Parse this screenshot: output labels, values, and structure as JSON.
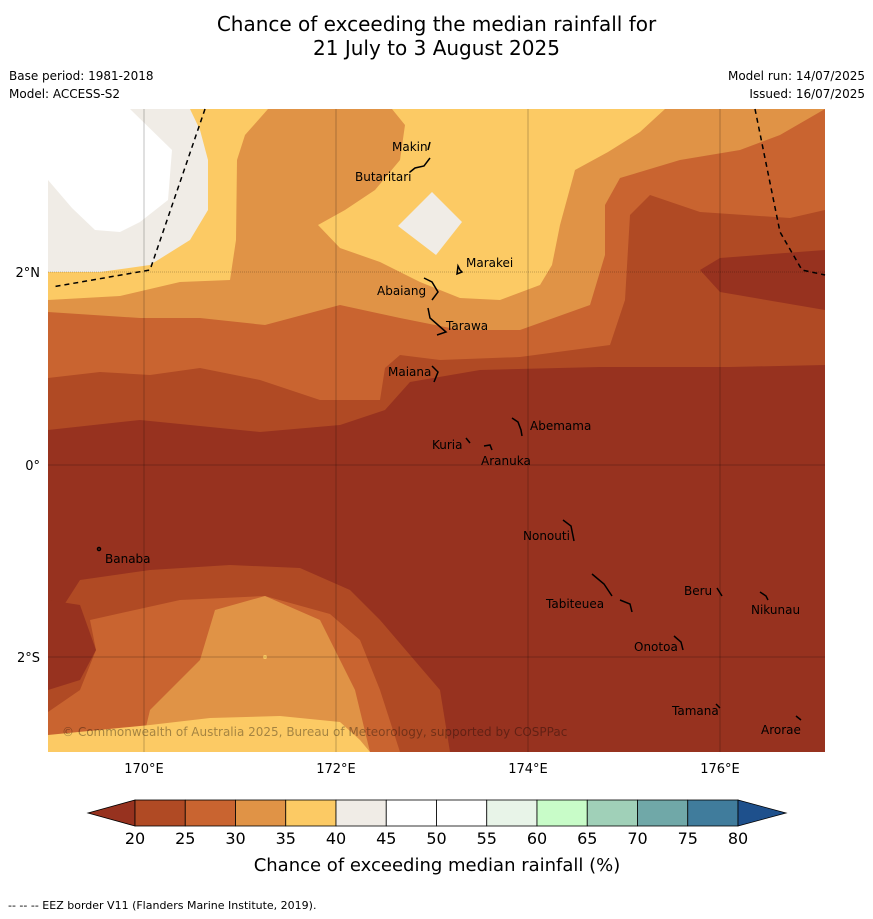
{
  "title_line1": "Chance of exceeding the median rainfall for",
  "title_line2": "21 July to 3 August 2025",
  "meta": {
    "base_period": "Base period: 1981-2018",
    "model": "Model: ACCESS-S2",
    "model_run": "Model run: 14/07/2025",
    "issued": "Issued: 16/07/2025"
  },
  "axes": {
    "lon_ticks": [
      "170°E",
      "172°E",
      "174°E",
      "176°E"
    ],
    "lat_ticks": [
      "2°N",
      "0°",
      "2°S"
    ]
  },
  "places": [
    "Makin",
    "Butaritari",
    "Marakei",
    "Abaiang",
    "Tarawa",
    "Maiana",
    "Abemama",
    "Kuria",
    "Aranuka",
    "Nonouti",
    "Banaba",
    "Tabiteuea",
    "Beru",
    "Nikunau",
    "Onotoa",
    "Tamana",
    "Arorae"
  ],
  "copyright": "© Commonwealth of Australia 2025, Bureau of Meteorology, supported by COSPPac",
  "colorbar": {
    "ticks": [
      "20",
      "25",
      "30",
      "35",
      "40",
      "45",
      "50",
      "55",
      "60",
      "65",
      "70",
      "75",
      "80"
    ],
    "colors": [
      "#b04a24",
      "#c96430",
      "#e09346",
      "#fcca64",
      "#f0ece6",
      "#ffffff",
      "#ffffff",
      "#e8f4e8",
      "#c8fcc8",
      "#a0d0b8",
      "#70a8a8",
      "#407c9c"
    ],
    "under_color": "#97321f",
    "over_color": "#1e508c",
    "label": "Chance of exceeding median rainfall (%)"
  },
  "footer": "--  --  -- EEZ border V11 (Flanders Marine Institute, 2019)."
}
